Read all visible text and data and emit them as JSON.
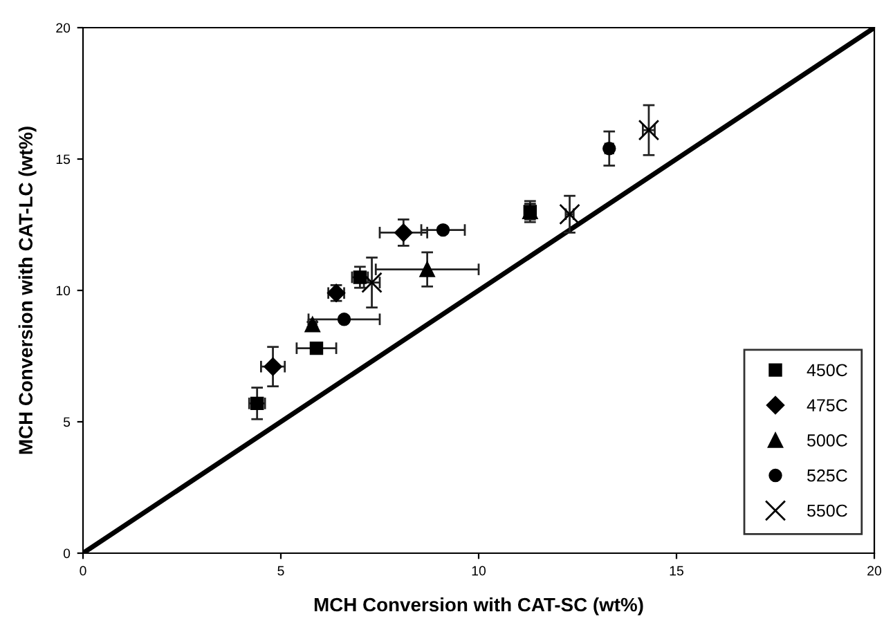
{
  "chart_data": {
    "type": "scatter",
    "xlabel": "MCH Conversion with CAT-SC (wt%)",
    "ylabel": "MCH Conversion with CAT-LC (wt%)",
    "xlim": [
      0,
      20
    ],
    "ylim": [
      0,
      20
    ],
    "xticks": [
      0,
      5,
      10,
      15,
      20
    ],
    "yticks": [
      0,
      5,
      10,
      15,
      20
    ],
    "grid": false,
    "legend": "bottom right",
    "series": [
      {
        "name": "450C",
        "color": "#000000",
        "marker": "square",
        "x": [
          4.4,
          5.9,
          7.0,
          11.3
        ],
        "values": [
          5.7,
          7.8,
          10.5,
          13.0
        ],
        "errors": [
          0.6,
          0.1,
          0.4,
          0.4
        ],
        "xerrors": [
          0.2,
          0.5,
          0.2,
          0.1
        ]
      },
      {
        "name": "475C",
        "color": "#000000",
        "marker": "diamond",
        "x": [
          4.8,
          6.4,
          8.1
        ],
        "values": [
          7.1,
          9.9,
          12.2
        ],
        "errors": [
          0.75,
          0.3,
          0.5
        ],
        "xerrors": [
          0.3,
          0.2,
          0.6
        ]
      },
      {
        "name": "500C",
        "color": "#000000",
        "marker": "triangle",
        "x": [
          5.8,
          8.7,
          11.3
        ],
        "values": [
          8.7,
          10.8,
          13.0
        ],
        "errors": [
          0.1,
          0.65,
          0.3
        ],
        "xerrors": [
          0.1,
          1.3,
          0.1
        ]
      },
      {
        "name": "525C",
        "color": "#000000",
        "marker": "circle",
        "x": [
          6.6,
          9.1,
          13.3
        ],
        "values": [
          8.9,
          12.3,
          15.4
        ],
        "errors": [
          0.1,
          0.1,
          0.65
        ],
        "xerrors": [
          0.9,
          0.55,
          0.1
        ]
      },
      {
        "name": "550C",
        "color": "#000000",
        "marker": "cross",
        "x": [
          7.3,
          12.3,
          14.3
        ],
        "values": [
          10.3,
          12.9,
          16.1
        ],
        "errors": [
          0.95,
          0.7,
          0.95
        ],
        "xerrors": [
          0.2,
          0.1,
          0.15
        ]
      },
      {
        "type": "line",
        "color": "#000000",
        "marker": "none",
        "x": [
          0,
          20
        ],
        "values": [
          0,
          20
        ]
      }
    ]
  }
}
